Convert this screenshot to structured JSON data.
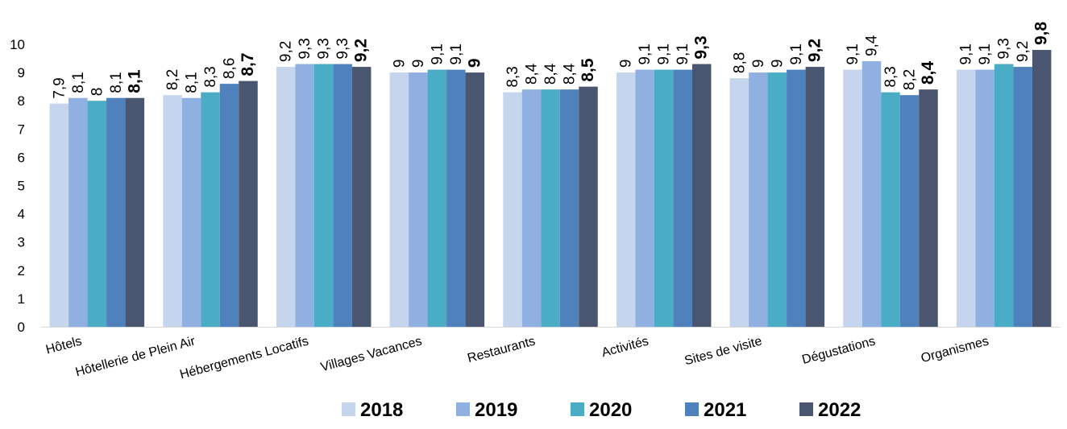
{
  "chart_data": {
    "type": "bar",
    "categories": [
      "Hôtels",
      "Hôtellerie de Plein Air",
      "Hébergements Locatifs",
      "Villages Vacances",
      "Restaurants",
      "Activités",
      "Sites de visite",
      "Dégustations",
      "Organismes"
    ],
    "series": [
      {
        "name": "2018",
        "color": "#c5d5ee",
        "values": [
          7.9,
          8.2,
          9.2,
          9,
          8.3,
          9,
          8.8,
          9.1,
          9.1
        ],
        "labels": [
          "7,9",
          "8,2",
          "9,2",
          "9",
          "8,3",
          "9",
          "8,8",
          "9,1",
          "9,1"
        ]
      },
      {
        "name": "2019",
        "color": "#8fb0e0",
        "values": [
          8.1,
          8.1,
          9.3,
          9,
          8.4,
          9.1,
          9,
          9.4,
          9.1
        ],
        "labels": [
          "8,1",
          "8,1",
          "9,3",
          "9",
          "8,4",
          "9,1",
          "9",
          "9,4",
          "9,1"
        ]
      },
      {
        "name": "2020",
        "color": "#4aacc5",
        "values": [
          8,
          8.3,
          9.3,
          9.1,
          8.4,
          9.1,
          9,
          8.3,
          9.3
        ],
        "labels": [
          "8",
          "8,3",
          "9,3",
          "9,1",
          "8,4",
          "9,1",
          "9",
          "8,3",
          "9,3"
        ]
      },
      {
        "name": "2021",
        "color": "#4f81bd",
        "values": [
          8.1,
          8.6,
          9.3,
          9.1,
          8.4,
          9.1,
          9.1,
          8.2,
          9.2
        ],
        "labels": [
          "8,1",
          "8,6",
          "9,3",
          "9,1",
          "8,4",
          "9,1",
          "9,1",
          "8,2",
          "9,2"
        ]
      },
      {
        "name": "2022",
        "color": "#4a5570",
        "values": [
          8.1,
          8.7,
          9.2,
          9,
          8.5,
          9.3,
          9.2,
          8.4,
          9.8
        ],
        "labels": [
          "8,1",
          "8,7",
          "9,2",
          "9",
          "8,5",
          "9,3",
          "9,2",
          "8,4",
          "9,8"
        ],
        "bold_labels": true
      }
    ],
    "yticks": [
      "0",
      "1",
      "2",
      "3",
      "4",
      "5",
      "6",
      "7",
      "8",
      "9",
      "10"
    ],
    "ylim": [
      0,
      10
    ],
    "grid": false,
    "legend_position": "bottom",
    "title": "",
    "xlabel": "",
    "ylabel": ""
  }
}
